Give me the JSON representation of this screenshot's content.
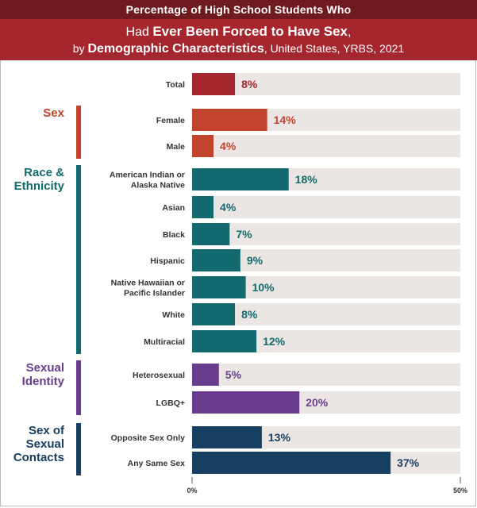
{
  "header": {
    "line1": "Percentage of High School Students Who",
    "line2_pre": "Had ",
    "line2_bold": "Ever Been Forced to Have Sex",
    "line2_post": ",",
    "line3_pre": "by ",
    "line3_bold": "Demographic Characteristics",
    "line3_post": ", United States, YRBS, 2021"
  },
  "colors": {
    "total": "#a5262e",
    "sex": "#c1432e",
    "race": "#136a6e",
    "identity": "#6b3d8e",
    "contacts": "#173f61",
    "track": "#ebe6e4"
  },
  "chart_data": {
    "type": "bar",
    "orientation": "horizontal",
    "title": "Percentage of High School Students Who Had Ever Been Forced to Have Sex, by Demographic Characteristics, United States, YRBS, 2021",
    "xlim": [
      0,
      50
    ],
    "xticks": [
      "0%",
      "50%"
    ],
    "groups": [
      {
        "name": "",
        "lines": [],
        "color_key": "total",
        "rows": [
          {
            "label": [
              "Total"
            ],
            "value": 8,
            "display": "8%"
          }
        ]
      },
      {
        "name": "Sex",
        "lines": [
          "Sex"
        ],
        "color_key": "sex",
        "rows": [
          {
            "label": [
              "Female"
            ],
            "value": 14,
            "display": "14%"
          },
          {
            "label": [
              "Male"
            ],
            "value": 4,
            "display": "4%"
          }
        ]
      },
      {
        "name": "Race & Ethnicity",
        "lines": [
          "Race &",
          "Ethnicity"
        ],
        "color_key": "race",
        "rows": [
          {
            "label": [
              "American Indian or",
              "Alaska Native"
            ],
            "value": 18,
            "display": "18%"
          },
          {
            "label": [
              "Asian"
            ],
            "value": 4,
            "display": "4%"
          },
          {
            "label": [
              "Black"
            ],
            "value": 7,
            "display": "7%"
          },
          {
            "label": [
              "Hispanic"
            ],
            "value": 9,
            "display": "9%"
          },
          {
            "label": [
              "Native Hawaiian or",
              "Pacific Islander"
            ],
            "value": 10,
            "display": "10%"
          },
          {
            "label": [
              "White"
            ],
            "value": 8,
            "display": "8%"
          },
          {
            "label": [
              "Multiracial"
            ],
            "value": 12,
            "display": "12%"
          }
        ]
      },
      {
        "name": "Sexual Identity",
        "lines": [
          "Sexual",
          "Identity"
        ],
        "color_key": "identity",
        "rows": [
          {
            "label": [
              "Heterosexual"
            ],
            "value": 5,
            "display": "5%"
          },
          {
            "label": [
              "LGBQ+"
            ],
            "value": 20,
            "display": "20%"
          }
        ]
      },
      {
        "name": "Sex of Sexual Contacts",
        "lines": [
          "Sex of",
          "Sexual",
          "Contacts"
        ],
        "color_key": "contacts",
        "rows": [
          {
            "label": [
              "Opposite Sex Only"
            ],
            "value": 13,
            "display": "13%"
          },
          {
            "label": [
              "Any Same Sex"
            ],
            "value": 37,
            "display": "37%"
          }
        ]
      }
    ]
  }
}
